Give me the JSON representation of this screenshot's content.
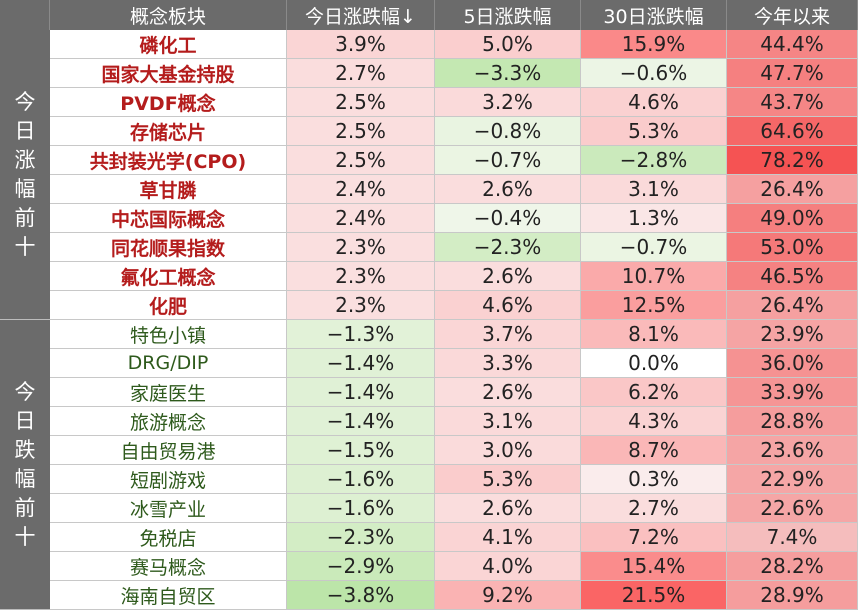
{
  "header": {
    "sector": "概念板块",
    "today": "今日涨跌幅↓",
    "d5": "5日涨跌幅",
    "d30": "30日涨跌幅",
    "ytd": "今年以来"
  },
  "groups": [
    {
      "label": "今日涨幅前十",
      "type": "up"
    },
    {
      "label": "今日跌幅前十",
      "type": "down"
    }
  ],
  "colors": {
    "header_bg": "#6b6b6b",
    "up_name": "#b41c1c",
    "down_name": "#2e5a1c",
    "positive": "#f08080",
    "negative": "#a7d49b"
  },
  "rows": [
    {
      "name": "磷化工",
      "today": "3.9%",
      "d5": "5.0%",
      "d30": "15.9%",
      "ytd": "44.4%"
    },
    {
      "name": "国家大基金持股",
      "today": "2.7%",
      "d5": "−3.3%",
      "d30": "−0.6%",
      "ytd": "47.7%"
    },
    {
      "name": "PVDF概念",
      "today": "2.5%",
      "d5": "3.2%",
      "d30": "4.6%",
      "ytd": "43.7%"
    },
    {
      "name": "存储芯片",
      "today": "2.5%",
      "d5": "−0.8%",
      "d30": "5.3%",
      "ytd": "64.6%"
    },
    {
      "name": "共封装光学(CPO)",
      "today": "2.5%",
      "d5": "−0.7%",
      "d30": "−2.8%",
      "ytd": "78.2%"
    },
    {
      "name": "草甘膦",
      "today": "2.4%",
      "d5": "2.6%",
      "d30": "3.1%",
      "ytd": "26.4%"
    },
    {
      "name": "中芯国际概念",
      "today": "2.4%",
      "d5": "−0.4%",
      "d30": "1.3%",
      "ytd": "49.0%"
    },
    {
      "name": "同花顺果指数",
      "today": "2.3%",
      "d5": "−2.3%",
      "d30": "−0.7%",
      "ytd": "53.0%"
    },
    {
      "name": "氟化工概念",
      "today": "2.3%",
      "d5": "2.6%",
      "d30": "10.7%",
      "ytd": "46.5%"
    },
    {
      "name": "化肥",
      "today": "2.3%",
      "d5": "4.6%",
      "d30": "12.5%",
      "ytd": "26.4%"
    },
    {
      "name": "特色小镇",
      "today": "−1.3%",
      "d5": "3.7%",
      "d30": "8.1%",
      "ytd": "23.9%"
    },
    {
      "name": "DRG/DIP",
      "today": "−1.4%",
      "d5": "3.3%",
      "d30": "0.0%",
      "ytd": "36.0%"
    },
    {
      "name": "家庭医生",
      "today": "−1.4%",
      "d5": "2.6%",
      "d30": "6.2%",
      "ytd": "33.9%"
    },
    {
      "name": "旅游概念",
      "today": "−1.4%",
      "d5": "3.1%",
      "d30": "4.3%",
      "ytd": "28.8%"
    },
    {
      "name": "自由贸易港",
      "today": "−1.5%",
      "d5": "3.0%",
      "d30": "8.7%",
      "ytd": "23.6%"
    },
    {
      "name": "短剧游戏",
      "today": "−1.6%",
      "d5": "5.3%",
      "d30": "0.3%",
      "ytd": "22.9%"
    },
    {
      "name": "冰雪产业",
      "today": "−1.6%",
      "d5": "2.6%",
      "d30": "2.7%",
      "ytd": "22.6%"
    },
    {
      "name": "免税店",
      "today": "−2.3%",
      "d5": "4.1%",
      "d30": "7.2%",
      "ytd": "7.4%"
    },
    {
      "name": "赛马概念",
      "today": "−2.9%",
      "d5": "4.0%",
      "d30": "15.4%",
      "ytd": "28.2%"
    },
    {
      "name": "海南自贸区",
      "today": "−3.8%",
      "d5": "9.2%",
      "d30": "21.5%",
      "ytd": "28.9%"
    }
  ]
}
